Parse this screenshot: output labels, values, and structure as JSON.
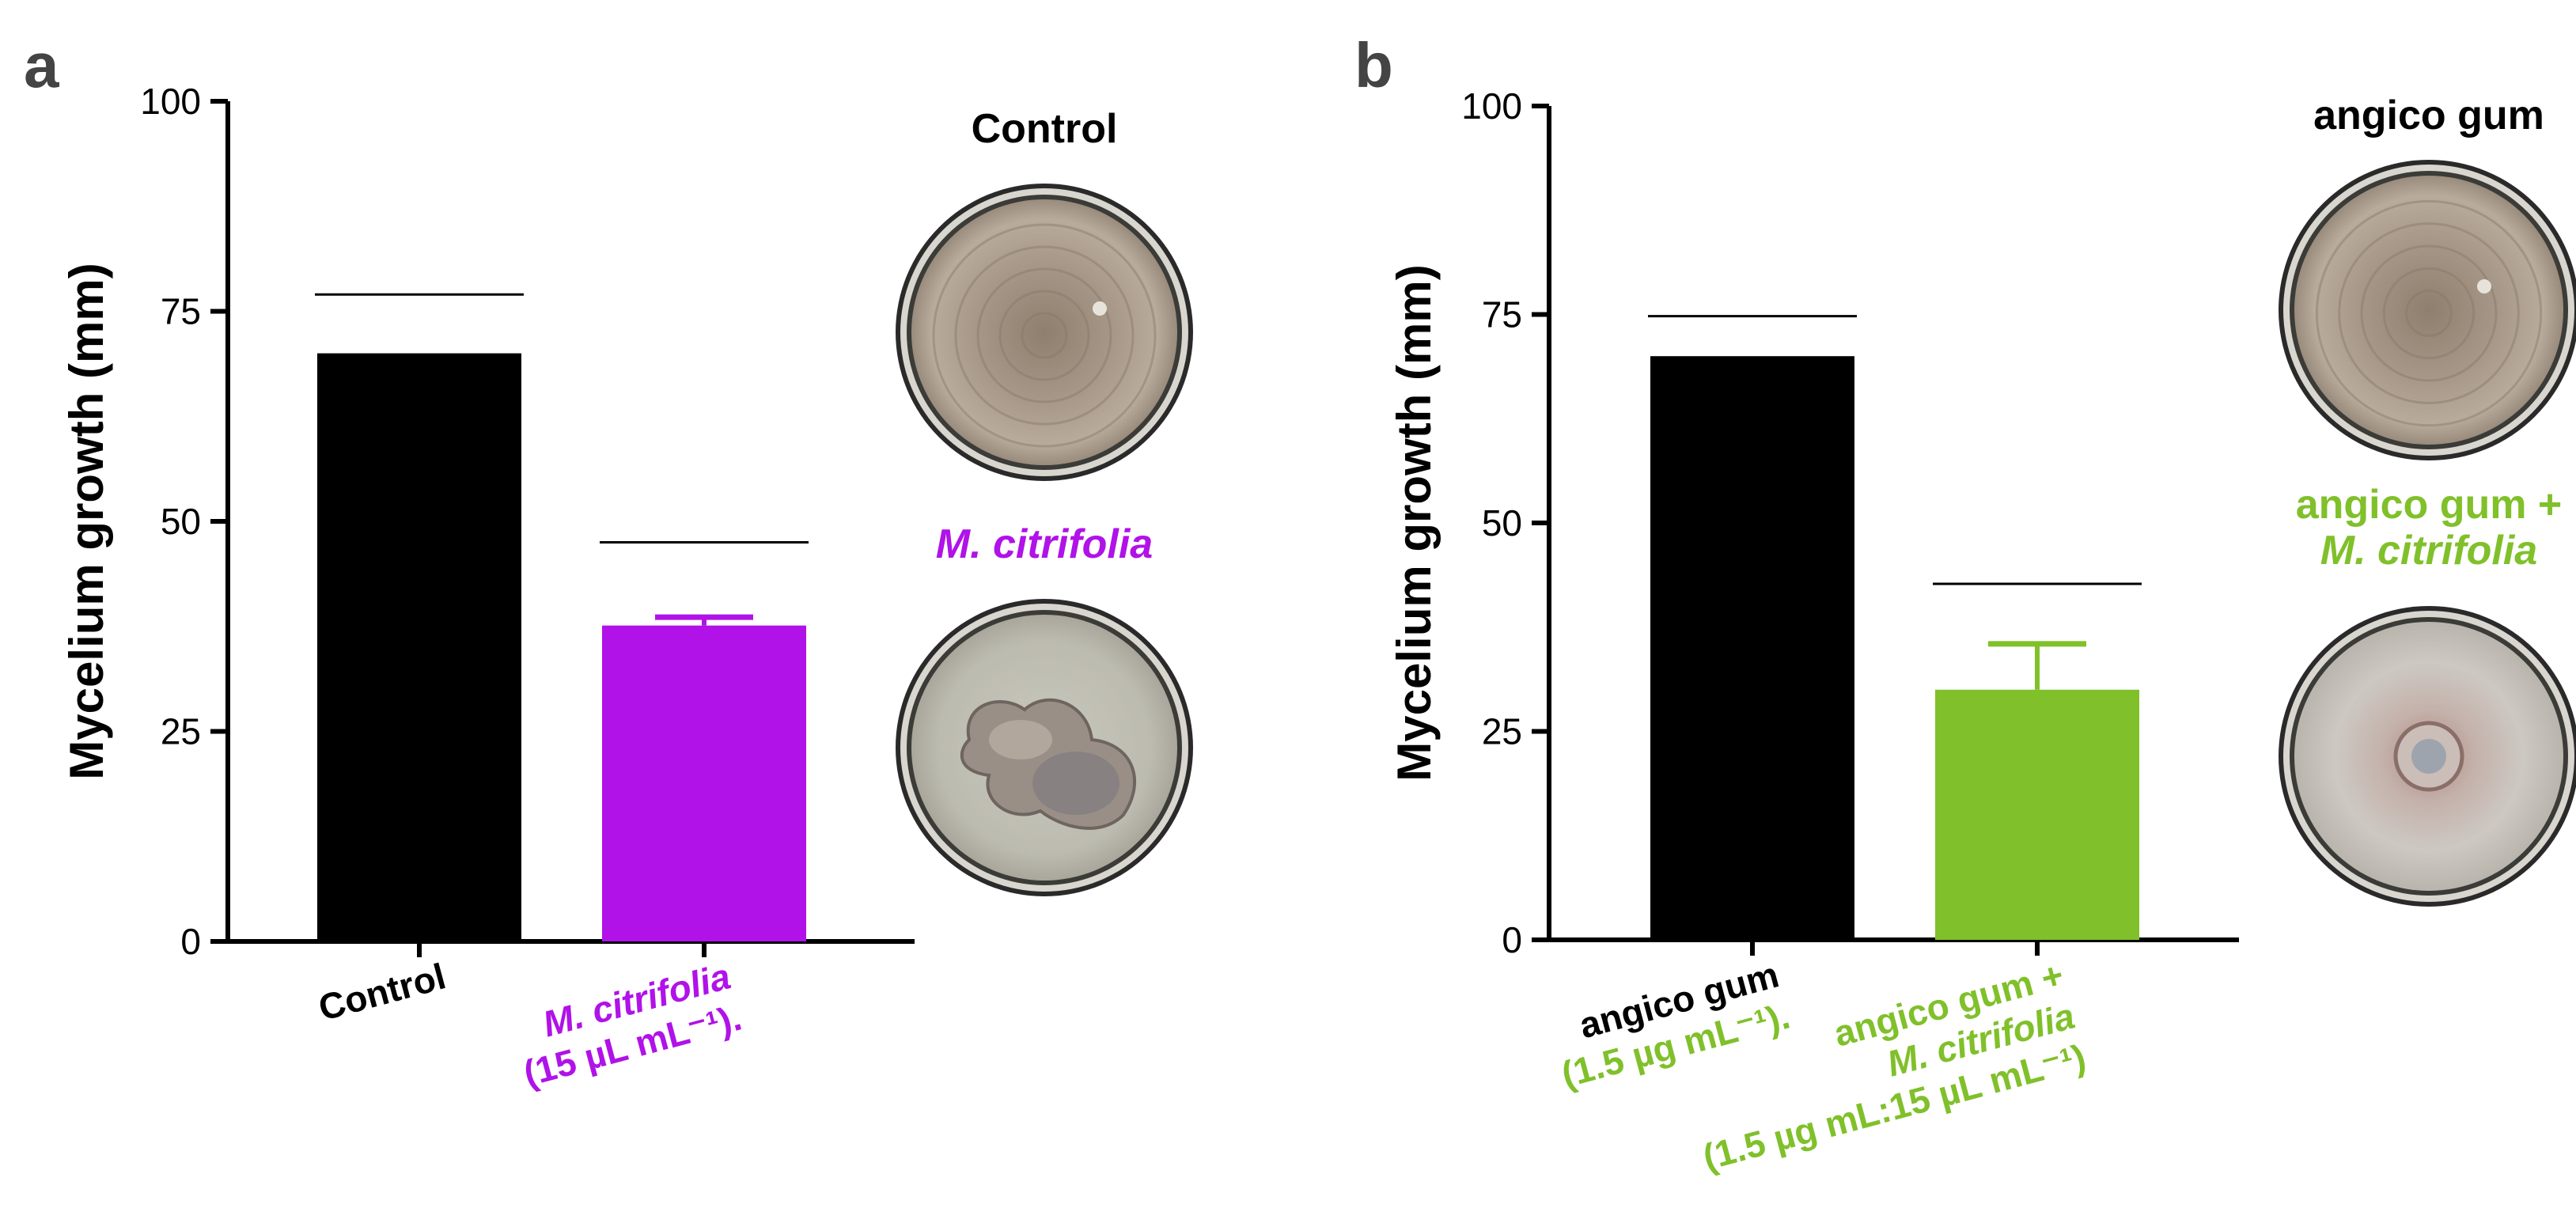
{
  "colors": {
    "black": "#000000",
    "purple": "#b012e8",
    "green": "#80c02a",
    "text": "#000000"
  },
  "chart_data": [
    {
      "panel": "a",
      "type": "bar",
      "ylabel": "Mycelium growth (mm)",
      "ylim": [
        0,
        100
      ],
      "yticks": [
        "0",
        "25",
        "50",
        "75",
        "100"
      ],
      "categories": [
        {
          "lines": [
            {
              "parts": [
                {
                  "text": "Control",
                  "italic": false
                }
              ]
            }
          ],
          "color": "black"
        },
        {
          "lines": [
            {
              "parts": [
                {
                  "text": "M. citrifolia",
                  "italic": true
                }
              ]
            },
            {
              "parts": [
                {
                  "text": "(15 µL mL⁻¹).",
                  "italic": false
                }
              ]
            }
          ],
          "color": "purple"
        }
      ],
      "values": [
        70,
        37.6
      ],
      "errors": [
        0,
        1.0
      ],
      "sig_lines": [
        77,
        47.5
      ],
      "photos": [
        {
          "label_lines": [
            {
              "text": "Control",
              "italic": false
            }
          ],
          "label_color": "black",
          "type": "full"
        },
        {
          "label_lines": [
            {
              "text": "M. citrifolia",
              "italic": true
            }
          ],
          "label_color": "purple",
          "type": "irregular"
        }
      ]
    },
    {
      "panel": "b",
      "type": "bar",
      "ylabel": "Mycelium growth (mm)",
      "ylim": [
        0,
        100
      ],
      "yticks": [
        "0",
        "25",
        "50",
        "75",
        "100"
      ],
      "categories": [
        {
          "lines": [
            {
              "parts": [
                {
                  "text": "angico gum",
                  "italic": false,
                  "color": "black"
                }
              ]
            },
            {
              "parts": [
                {
                  "text": "(1.5 µg mL⁻¹).",
                  "italic": false,
                  "color": "green"
                }
              ]
            }
          ],
          "color": "black"
        },
        {
          "lines": [
            {
              "parts": [
                {
                  "text": "angico gum +",
                  "italic": false
                }
              ]
            },
            {
              "parts": [
                {
                  "text": "M. citrifolia",
                  "italic": true
                }
              ]
            },
            {
              "parts": [
                {
                  "text": "(1.5 µg mL:15 µL mL⁻¹)",
                  "italic": false
                }
              ]
            }
          ],
          "color": "green"
        }
      ],
      "values": [
        70,
        30
      ],
      "errors": [
        0,
        5.5
      ],
      "sig_lines": [
        74.8,
        42.7
      ],
      "photos": [
        {
          "label_lines": [
            {
              "text": "angico gum",
              "italic": false
            }
          ],
          "label_color": "black",
          "type": "full"
        },
        {
          "label_lines": [
            {
              "text": "angico gum +",
              "italic": false
            },
            {
              "text": "M. citrifolia",
              "italic": true
            }
          ],
          "label_color": "green",
          "type": "small"
        }
      ]
    }
  ]
}
